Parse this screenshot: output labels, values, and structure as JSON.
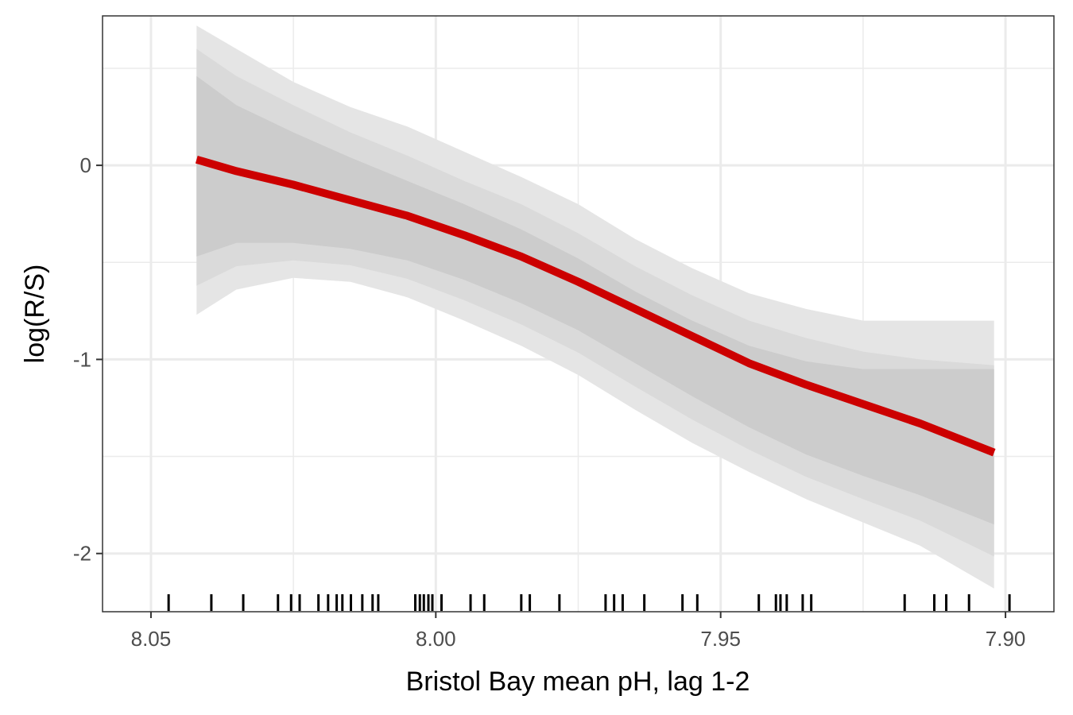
{
  "chart_data": {
    "type": "line",
    "title": "",
    "xlabel": "Bristol Bay mean pH, lag 1-2",
    "ylabel": "log(R/S)",
    "x_reversed": true,
    "xlim": [
      8.0585,
      7.8915
    ],
    "ylim": [
      -2.3,
      0.77
    ],
    "x_ticks": [
      8.05,
      8.0,
      7.95,
      7.9
    ],
    "x_tick_labels": [
      "8.05",
      "8.00",
      "7.95",
      "7.90"
    ],
    "x_minor_ticks": [
      8.025,
      7.975,
      7.925
    ],
    "y_ticks": [
      0,
      -1,
      -2
    ],
    "y_tick_labels": [
      "0",
      "-1",
      "-2"
    ],
    "y_minor_ticks": [
      0.5,
      -0.5,
      -1.5
    ],
    "grid": true,
    "colors": {
      "line": "#cc0000",
      "band_outer": "#e5e5e5",
      "band_middle": "#dadada",
      "band_inner": "#cccccc",
      "rug": "#000000",
      "grid": "#ebebeb"
    },
    "series": [
      {
        "x": [
          8.042,
          8.035,
          8.025,
          8.015,
          8.005,
          7.995,
          7.985,
          7.975,
          7.965,
          7.955,
          7.945,
          7.935,
          7.925,
          7.915,
          7.902
        ],
        "y": [
          0.03,
          -0.03,
          -0.1,
          -0.18,
          -0.26,
          -0.36,
          -0.47,
          -0.6,
          -0.74,
          -0.88,
          -1.02,
          -1.13,
          -1.23,
          -1.33,
          -1.48
        ],
        "bands": [
          {
            "level": "outer",
            "upper": [
              0.72,
              0.6,
              0.43,
              0.3,
              0.2,
              0.07,
              -0.06,
              -0.2,
              -0.38,
              -0.53,
              -0.66,
              -0.74,
              -0.8,
              -0.8,
              -0.8
            ],
            "lower": [
              -0.77,
              -0.64,
              -0.58,
              -0.6,
              -0.68,
              -0.8,
              -0.93,
              -1.08,
              -1.26,
              -1.43,
              -1.58,
              -1.72,
              -1.84,
              -1.96,
              -2.18
            ]
          },
          {
            "level": "middle",
            "upper": [
              0.6,
              0.46,
              0.31,
              0.17,
              0.05,
              -0.08,
              -0.2,
              -0.35,
              -0.52,
              -0.67,
              -0.8,
              -0.89,
              -0.96,
              -1.0,
              -1.03
            ]
          },
          {
            "level": "inner",
            "upper": [
              0.46,
              0.31,
              0.17,
              0.04,
              -0.08,
              -0.2,
              -0.33,
              -0.48,
              -0.65,
              -0.8,
              -0.93,
              -1.01,
              -1.05,
              -1.05,
              -1.05
            ],
            "lower": [
              -0.47,
              -0.4,
              -0.4,
              -0.43,
              -0.49,
              -0.59,
              -0.71,
              -0.85,
              -1.02,
              -1.19,
              -1.35,
              -1.49,
              -1.6,
              -1.7,
              -1.85
            ]
          }
        ]
      }
    ],
    "rug_x": [
      8.0469,
      8.0394,
      8.0338,
      8.0277,
      8.0254,
      8.0239,
      8.0206,
      8.0189,
      8.0174,
      8.0164,
      8.0149,
      8.0129,
      8.0111,
      8.0101,
      8.0036,
      8.0028,
      8.0021,
      8.0013,
      8.0006,
      7.999,
      7.9939,
      7.9915,
      7.985,
      7.9835,
      7.9783,
      7.9702,
      7.9687,
      7.9672,
      7.9634,
      7.9567,
      7.9541,
      7.9433,
      7.9403,
      7.9395,
      7.9384,
      7.9356,
      7.9341,
      7.9177,
      7.9125,
      7.9104,
      7.9064,
      7.8993
    ]
  }
}
